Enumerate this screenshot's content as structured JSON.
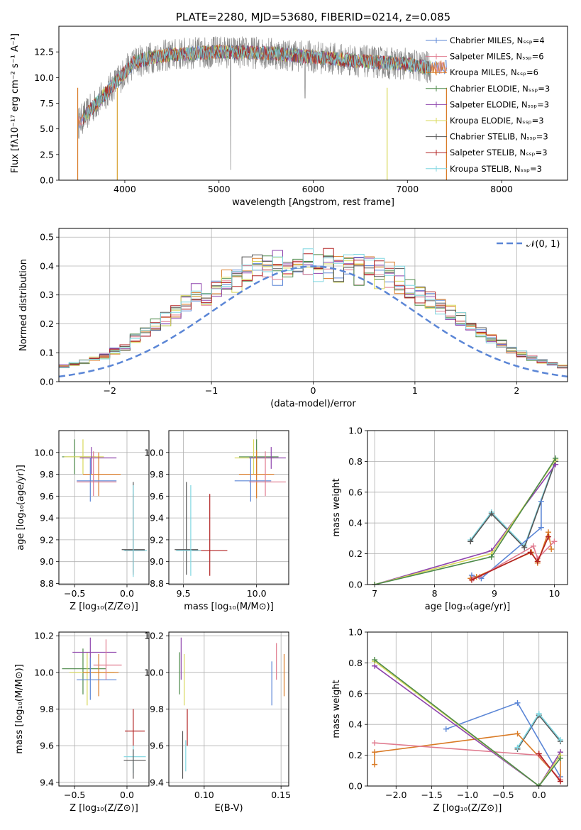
{
  "chart_data": [
    {
      "id": "spectrum",
      "type": "line",
      "title": "PLATE=2280, MJD=53680, FIBERID=0214, z=0.085",
      "xlabel": "wavelength [Angstrom, rest frame]",
      "ylabel": "Flux [fλ10⁻¹⁷ erg cm⁻² s⁻¹ A⁻¹]",
      "xlim": [
        3300,
        8700
      ],
      "ylim": [
        0,
        15
      ],
      "xticks": [
        "4000",
        "5000",
        "6000",
        "7000",
        "8000"
      ],
      "yticks": [
        "0.0",
        "2.5",
        "5.0",
        "7.5",
        "10.0",
        "12.5"
      ],
      "grid": false,
      "legend_placement": "top-right",
      "series": [
        {
          "name": "Chabrier MILES, Nₛₛₚ=4",
          "color": "#5b86d6"
        },
        {
          "name": "Salpeter MILES, Nₛₛₚ=6",
          "color": "#e07b8f"
        },
        {
          "name": "Kroupa MILES, Nₛₛₚ=6",
          "color": "#d97a25"
        },
        {
          "name": "Chabrier ELODIE, Nₛₛₚ=3",
          "color": "#4d8a4a"
        },
        {
          "name": "Salpeter ELODIE, Nₛₛₚ=3",
          "color": "#8e44ad"
        },
        {
          "name": "Kroupa ELODIE, Nₛₛₚ=3",
          "color": "#d8d85a"
        },
        {
          "name": "Chabrier STELIB, Nₛₛₚ=3",
          "color": "#555555"
        },
        {
          "name": "Salpeter STELIB, Nₛₛₚ=3",
          "color": "#b22222"
        },
        {
          "name": "Kroupa STELIB, Nₛₛₚ=3",
          "color": "#7fd6e0"
        }
      ],
      "continuum": {
        "x": [
          3500,
          3650,
          3800,
          3950,
          4100,
          4300,
          4600,
          5000,
          5500,
          6000,
          6500,
          7000,
          7200
        ],
        "y": [
          5.5,
          7.0,
          8.5,
          10.0,
          11.5,
          12.0,
          12.3,
          12.5,
          12.4,
          12.0,
          11.6,
          11.3,
          11.0
        ]
      }
    },
    {
      "id": "residuals",
      "type": "line",
      "xlabel": "(data-model)/error",
      "ylabel": "Normed distribution",
      "xlim": [
        -2.5,
        2.5
      ],
      "ylim": [
        0,
        0.53
      ],
      "xticks": [
        "−2",
        "−1",
        "0",
        "1",
        "2"
      ],
      "yticks": [
        "0.0",
        "0.1",
        "0.2",
        "0.3",
        "0.4",
        "0.5"
      ],
      "grid": true,
      "legend_placement": "top-right",
      "legend_label": "𝒩(0, 1)",
      "gaussian_color": "#5b86d6",
      "histogram": {
        "bin_width": 0.1,
        "mean_values": [
          0.021,
          0.026,
          0.032,
          0.038,
          0.045,
          0.053,
          0.062,
          0.07,
          0.078,
          0.087,
          0.105,
          0.118,
          0.15,
          0.17,
          0.196,
          0.216,
          0.243,
          0.275,
          0.31,
          0.29,
          0.318,
          0.336,
          0.348,
          0.37,
          0.376,
          0.38,
          0.386,
          0.39,
          0.392,
          0.394,
          0.396,
          0.398,
          0.392,
          0.39,
          0.386,
          0.376,
          0.366,
          0.352,
          0.34,
          0.32,
          0.296,
          0.28,
          0.258,
          0.24,
          0.216,
          0.196,
          0.172,
          0.15,
          0.131,
          0.11,
          0.096,
          0.082,
          0.07,
          0.06,
          0.052,
          0.045,
          0.038,
          0.032,
          0.026,
          0.021
        ]
      }
    },
    {
      "id": "age_vs_Z",
      "type": "scatter",
      "xlabel": "Z [log₁₀(Z/Z⊙)]",
      "ylabel": "age  [log₁₀(age/yr)]",
      "xlim": [
        -0.65,
        0.21
      ],
      "ylim": [
        8.79,
        10.2
      ],
      "xticks": [
        "−0.5",
        "0.0"
      ],
      "yticks": [
        "8.8",
        "9.0",
        "9.2",
        "9.4",
        "9.6",
        "9.8",
        "10.0"
      ],
      "grid": true,
      "points": [
        {
          "color": "#4d8a4a",
          "x": -0.5,
          "y": 9.96,
          "xlo": -0.62,
          "xhi": -0.3,
          "ylo": 9.8,
          "yhi": 10.12
        },
        {
          "color": "#d8d85a",
          "x": -0.42,
          "y": 9.96,
          "xlo": -0.6,
          "xhi": -0.22,
          "ylo": 9.8,
          "yhi": 10.12
        },
        {
          "color": "#8e44ad",
          "x": -0.34,
          "y": 9.95,
          "xlo": -0.45,
          "xhi": -0.1,
          "ylo": 9.8,
          "yhi": 10.05
        },
        {
          "color": "#d97a25",
          "x": -0.27,
          "y": 9.8,
          "xlo": -0.42,
          "xhi": -0.06,
          "ylo": 9.6,
          "yhi": 10.0
        },
        {
          "color": "#5b86d6",
          "x": -0.35,
          "y": 9.74,
          "xlo": -0.48,
          "xhi": -0.1,
          "ylo": 9.55,
          "yhi": 9.95
        },
        {
          "color": "#e07b8f",
          "x": -0.32,
          "y": 9.73,
          "xlo": -0.48,
          "xhi": -0.1,
          "ylo": 9.6,
          "yhi": 10.01
        },
        {
          "color": "#555555",
          "x": 0.06,
          "y": 9.11,
          "xlo": -0.05,
          "xhi": 0.17,
          "ylo": 8.9,
          "yhi": 9.73
        },
        {
          "color": "#b22222",
          "x": 0.06,
          "y": 9.1,
          "xlo": -0.02,
          "xhi": 0.17,
          "ylo": 8.88,
          "yhi": 9.62
        },
        {
          "color": "#7fd6e0",
          "x": 0.06,
          "y": 9.1,
          "xlo": -0.03,
          "xhi": 0.19,
          "ylo": 8.86,
          "yhi": 9.7
        }
      ]
    },
    {
      "id": "age_vs_mass",
      "type": "scatter",
      "xlabel": "mass [log₁₀(M/M⊙)]",
      "ylabel": "",
      "xlim": [
        9.4,
        10.22
      ],
      "ylim": [
        8.79,
        10.2
      ],
      "xticks": [
        "9.5",
        "10.0"
      ],
      "yticks": [
        "8.8",
        "9.0",
        "9.2",
        "9.4",
        "9.6",
        "9.8",
        "10.0"
      ],
      "grid": true,
      "points": [
        {
          "color": "#4d8a4a",
          "x": 10.0,
          "y": 9.96,
          "xlo": 9.88,
          "xhi": 10.15,
          "ylo": 9.8,
          "yhi": 10.12
        },
        {
          "color": "#d8d85a",
          "x": 9.98,
          "y": 9.95,
          "xlo": 9.85,
          "xhi": 10.12,
          "ylo": 9.8,
          "yhi": 10.12
        },
        {
          "color": "#8e44ad",
          "x": 10.1,
          "y": 9.95,
          "xlo": 9.95,
          "xhi": 10.2,
          "ylo": 9.85,
          "yhi": 10.05
        },
        {
          "color": "#d97a25",
          "x": 10.0,
          "y": 9.8,
          "xlo": 9.88,
          "xhi": 10.12,
          "ylo": 9.58,
          "yhi": 10.02
        },
        {
          "color": "#5b86d6",
          "x": 9.96,
          "y": 9.74,
          "xlo": 9.85,
          "xhi": 10.1,
          "ylo": 9.55,
          "yhi": 9.95
        },
        {
          "color": "#e07b8f",
          "x": 10.06,
          "y": 9.73,
          "xlo": 9.95,
          "xhi": 10.2,
          "ylo": 9.6,
          "yhi": 10.01
        },
        {
          "color": "#555555",
          "x": 9.52,
          "y": 9.11,
          "xlo": 9.44,
          "xhi": 9.6,
          "ylo": 8.88,
          "yhi": 9.73
        },
        {
          "color": "#b22222",
          "x": 9.68,
          "y": 9.1,
          "xlo": 9.56,
          "xhi": 9.8,
          "ylo": 8.87,
          "yhi": 9.62
        },
        {
          "color": "#7fd6e0",
          "x": 9.55,
          "y": 9.1,
          "xlo": 9.45,
          "xhi": 9.62,
          "ylo": 8.87,
          "yhi": 9.7
        }
      ]
    },
    {
      "id": "weight_vs_age",
      "type": "line",
      "xlabel": "age  [log₁₀(age/yr)]",
      "ylabel": "mass weight",
      "xlim": [
        6.88,
        10.22
      ],
      "ylim": [
        0,
        1
      ],
      "xticks": [
        "7",
        "8",
        "9",
        "10"
      ],
      "yticks": [
        "0.0",
        "0.2",
        "0.4",
        "0.6",
        "0.8",
        "1.0"
      ],
      "grid": true,
      "series": [
        {
          "color": "#7fd6e0",
          "x": [
            8.6,
            8.95,
            9.5,
            10.02
          ],
          "y": [
            0.29,
            0.47,
            0.25,
            0.81
          ]
        },
        {
          "color": "#555555",
          "x": [
            8.6,
            8.95,
            9.5,
            10.02
          ],
          "y": [
            0.28,
            0.46,
            0.24,
            0.8
          ]
        },
        {
          "color": "#5b86d6",
          "x": [
            8.62,
            8.78,
            9.78,
            9.78
          ],
          "y": [
            0.06,
            0.04,
            0.37,
            0.54
          ]
        },
        {
          "color": "#d97a25",
          "x": [
            8.6,
            8.7,
            9.62,
            9.72,
            9.9,
            9.95
          ],
          "y": [
            0.04,
            0.05,
            0.21,
            0.14,
            0.34,
            0.23
          ]
        },
        {
          "color": "#e07b8f",
          "x": [
            8.65,
            8.75,
            9.65,
            9.72,
            10.0
          ],
          "y": [
            0.04,
            0.05,
            0.25,
            0.17,
            0.28
          ]
        },
        {
          "color": "#b22222",
          "x": [
            8.62,
            9.6,
            9.72,
            9.9
          ],
          "y": [
            0.03,
            0.21,
            0.15,
            0.31
          ]
        },
        {
          "color": "#8e44ad",
          "x": [
            7.0,
            8.95,
            10.02
          ],
          "y": [
            0.0,
            0.22,
            0.78
          ]
        },
        {
          "color": "#d8d85a",
          "x": [
            7.0,
            8.95,
            10.02
          ],
          "y": [
            0.0,
            0.2,
            0.81
          ]
        },
        {
          "color": "#4d8a4a",
          "x": [
            7.0,
            8.95,
            10.02
          ],
          "y": [
            0.0,
            0.18,
            0.82
          ]
        }
      ]
    },
    {
      "id": "mass_vs_Z",
      "type": "scatter",
      "xlabel": "Z [log₁₀(Z/Z⊙)]",
      "ylabel": "mass [log₁₀(M/M⊙)]",
      "xlim": [
        -0.65,
        0.21
      ],
      "ylim": [
        9.38,
        10.22
      ],
      "xticks": [
        "−0.5",
        "0.0"
      ],
      "yticks": [
        "9.4",
        "9.6",
        "9.8",
        "10.0",
        "10.2"
      ],
      "grid": true,
      "points": [
        {
          "color": "#4d8a4a",
          "x": -0.42,
          "y": 10.02,
          "xlo": -0.62,
          "xhi": -0.2,
          "ylo": 9.88,
          "yhi": 10.13
        },
        {
          "color": "#d8d85a",
          "x": -0.38,
          "y": 10.0,
          "xlo": -0.55,
          "xhi": -0.12,
          "ylo": 9.82,
          "yhi": 10.11
        },
        {
          "color": "#8e44ad",
          "x": -0.35,
          "y": 10.11,
          "xlo": -0.52,
          "xhi": -0.1,
          "ylo": 9.96,
          "yhi": 10.19
        },
        {
          "color": "#d97a25",
          "x": -0.27,
          "y": 10.0,
          "xlo": -0.42,
          "xhi": -0.08,
          "ylo": 9.87,
          "yhi": 10.1
        },
        {
          "color": "#5b86d6",
          "x": -0.35,
          "y": 9.96,
          "xlo": -0.48,
          "xhi": -0.1,
          "ylo": 9.85,
          "yhi": 10.08
        },
        {
          "color": "#e07b8f",
          "x": -0.2,
          "y": 10.04,
          "xlo": -0.32,
          "xhi": -0.05,
          "ylo": 9.96,
          "yhi": 10.18
        },
        {
          "color": "#b22222",
          "x": 0.06,
          "y": 9.68,
          "xlo": -0.02,
          "xhi": 0.17,
          "ylo": 9.6,
          "yhi": 9.8
        },
        {
          "color": "#7fd6e0",
          "x": 0.06,
          "y": 9.54,
          "xlo": -0.03,
          "xhi": 0.18,
          "ylo": 9.45,
          "yhi": 9.6
        },
        {
          "color": "#555555",
          "x": 0.06,
          "y": 9.52,
          "xlo": -0.03,
          "xhi": 0.18,
          "ylo": 9.42,
          "yhi": 9.58
        }
      ]
    },
    {
      "id": "mass_vs_ebv",
      "type": "scatter",
      "xlabel": "E(B-V)",
      "ylabel": "",
      "xlim": [
        0.077,
        0.155
      ],
      "ylim": [
        9.38,
        10.22
      ],
      "xticks": [
        "0.10",
        "0.15"
      ],
      "yticks": [
        "9.4",
        "9.6",
        "9.8",
        "10.0",
        "10.2"
      ],
      "grid": true,
      "points": [
        {
          "color": "#4d8a4a",
          "x": 0.084,
          "ylo": 9.88,
          "yhi": 10.11
        },
        {
          "color": "#8e44ad",
          "x": 0.085,
          "ylo": 9.96,
          "yhi": 10.19
        },
        {
          "color": "#d8d85a",
          "x": 0.087,
          "ylo": 9.82,
          "yhi": 10.1
        },
        {
          "color": "#555555",
          "x": 0.086,
          "ylo": 9.42,
          "yhi": 9.68
        },
        {
          "color": "#7fd6e0",
          "x": 0.088,
          "ylo": 9.46,
          "yhi": 9.63
        },
        {
          "color": "#b22222",
          "x": 0.089,
          "ylo": 9.6,
          "yhi": 9.8
        },
        {
          "color": "#5b86d6",
          "x": 0.144,
          "ylo": 9.82,
          "yhi": 10.06
        },
        {
          "color": "#e07b8f",
          "x": 0.147,
          "ylo": 9.96,
          "yhi": 10.16
        },
        {
          "color": "#d97a25",
          "x": 0.152,
          "ylo": 9.87,
          "yhi": 10.1
        }
      ]
    },
    {
      "id": "weight_vs_Z",
      "type": "line",
      "xlabel": "Z [log₁₀(Z/Z⊙)]",
      "ylabel": "mass weight",
      "xlim": [
        -2.4,
        0.4
      ],
      "ylim": [
        0,
        1
      ],
      "xticks": [
        "−2.0",
        "−1.5",
        "−1.0",
        "−0.5",
        "0.0"
      ],
      "yticks": [
        "0.0",
        "0.2",
        "0.4",
        "0.6",
        "0.8",
        "1.0"
      ],
      "grid": true,
      "series": [
        {
          "color": "#555555",
          "x": [
            -0.3,
            0.0,
            0.3
          ],
          "y": [
            0.24,
            0.46,
            0.29
          ]
        },
        {
          "color": "#7fd6e0",
          "x": [
            -0.3,
            0.0,
            0.3
          ],
          "y": [
            0.25,
            0.47,
            0.3
          ]
        },
        {
          "color": "#5b86d6",
          "x": [
            -1.3,
            -0.3,
            0.3
          ],
          "y": [
            0.37,
            0.54,
            0.06
          ]
        },
        {
          "color": "#d97a25",
          "x": [
            -2.3,
            -2.3,
            -0.3,
            0.3,
            0.3
          ],
          "y": [
            0.14,
            0.22,
            0.34,
            0.04,
            0.22
          ]
        },
        {
          "color": "#e07b8f",
          "x": [
            -2.3,
            0.0,
            0.3
          ],
          "y": [
            0.28,
            0.2,
            0.04
          ]
        },
        {
          "color": "#b22222",
          "x": [
            0.0,
            0.3
          ],
          "y": [
            0.21,
            0.03
          ]
        },
        {
          "color": "#8e44ad",
          "x": [
            -2.3,
            0.0,
            0.3
          ],
          "y": [
            0.78,
            0.0,
            0.22
          ]
        },
        {
          "color": "#d8d85a",
          "x": [
            -2.3,
            0.0,
            0.3
          ],
          "y": [
            0.81,
            0.0,
            0.2
          ]
        },
        {
          "color": "#4d8a4a",
          "x": [
            -2.3,
            0.0,
            0.3
          ],
          "y": [
            0.82,
            0.0,
            0.18
          ]
        }
      ]
    }
  ]
}
